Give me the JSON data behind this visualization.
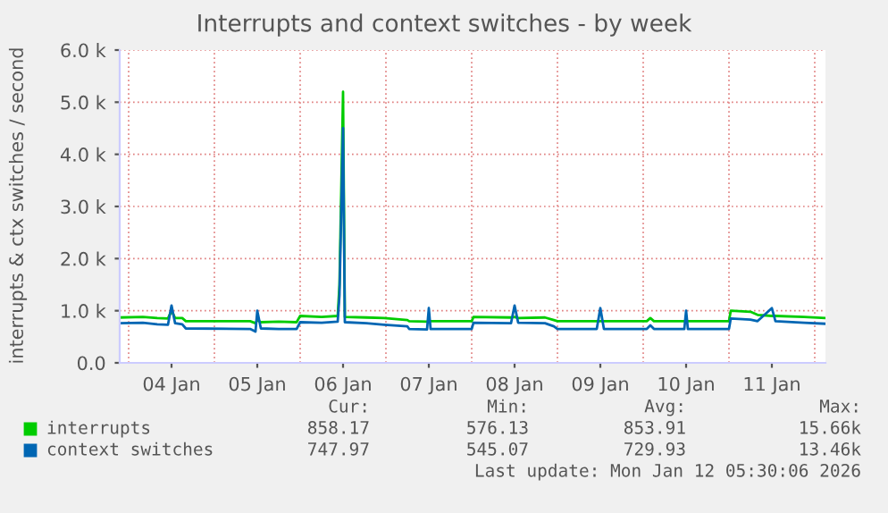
{
  "chart_data": {
    "type": "line",
    "title": "Interrupts and context switches - by week",
    "ylabel": "interrupts & ctx switches / second",
    "x": [
      "2026-01-03T21:30",
      "2026-01-04T04:00",
      "2026-01-04T08:00",
      "2026-01-04T11:00",
      "2026-01-04T12:00",
      "2026-01-04T13:00",
      "2026-01-04T15:00",
      "2026-01-04T16:00",
      "2026-01-05T10:00",
      "2026-01-05T11:30",
      "2026-01-05T12:00",
      "2026-01-05T13:00",
      "2026-01-05T18:00",
      "2026-01-05T23:00",
      "2026-01-06T00:00",
      "2026-01-06T06:00",
      "2026-01-06T10:30",
      "2026-01-06T11:00",
      "2026-01-06T12:00",
      "2026-01-06T12:30",
      "2026-01-06T18:30",
      "2026-01-06T23:30",
      "2026-01-07T06:00",
      "2026-01-07T06:30",
      "2026-01-07T11:30",
      "2026-01-07T12:00",
      "2026-01-07T12:30",
      "2026-01-08T00:00",
      "2026-01-08T00:30",
      "2026-01-08T11:00",
      "2026-01-08T12:00",
      "2026-01-08T13:00",
      "2026-01-08T20:30",
      "2026-01-08T23:00",
      "2026-01-09T00:00",
      "2026-01-09T11:00",
      "2026-01-09T12:00",
      "2026-01-09T13:00",
      "2026-01-10T01:00",
      "2026-01-10T02:00",
      "2026-01-10T03:00",
      "2026-01-10T11:30",
      "2026-01-10T12:00",
      "2026-01-10T12:30",
      "2026-01-11T00:00",
      "2026-01-11T00:30",
      "2026-01-11T06:00",
      "2026-01-11T08:00",
      "2026-01-11T12:00",
      "2026-01-11T13:00",
      "2026-01-11T21:00",
      "2026-01-12T03:00"
    ],
    "series": [
      {
        "name": "interrupts",
        "color": "#00cc00",
        "values": [
          870,
          880,
          860,
          850,
          1000,
          860,
          860,
          800,
          800,
          760,
          820,
          780,
          790,
          780,
          900,
          880,
          900,
          1500,
          5200,
          880,
          870,
          860,
          820,
          800,
          790,
          800,
          800,
          800,
          880,
          870,
          880,
          860,
          870,
          820,
          800,
          800,
          800,
          800,
          800,
          860,
          800,
          800,
          800,
          800,
          800,
          1000,
          980,
          920,
          900,
          900,
          880,
          860
        ]
      },
      {
        "name": "context switches",
        "color": "#0066b3",
        "values": [
          760,
          770,
          740,
          730,
          1100,
          760,
          740,
          660,
          650,
          600,
          1000,
          660,
          650,
          650,
          780,
          770,
          790,
          1300,
          4500,
          780,
          760,
          730,
          700,
          650,
          640,
          1050,
          650,
          650,
          770,
          760,
          1100,
          770,
          760,
          700,
          650,
          650,
          1050,
          650,
          650,
          720,
          650,
          650,
          1000,
          650,
          650,
          850,
          830,
          800,
          1050,
          800,
          770,
          750
        ]
      }
    ],
    "xlim": [
      "2026-01-03T21:30",
      "2026-01-12T03:00"
    ],
    "xticks": [
      {
        "value": "2026-01-04T12:00",
        "label": "04 Jan"
      },
      {
        "value": "2026-01-05T12:00",
        "label": "05 Jan"
      },
      {
        "value": "2026-01-06T12:00",
        "label": "06 Jan"
      },
      {
        "value": "2026-01-07T12:00",
        "label": "07 Jan"
      },
      {
        "value": "2026-01-08T12:00",
        "label": "08 Jan"
      },
      {
        "value": "2026-01-09T12:00",
        "label": "09 Jan"
      },
      {
        "value": "2026-01-10T12:00",
        "label": "10 Jan"
      },
      {
        "value": "2026-01-11T12:00",
        "label": "11 Jan"
      }
    ],
    "ylim": [
      0,
      6000
    ],
    "yticks": [
      {
        "value": 0,
        "label": "0.0"
      },
      {
        "value": 1000,
        "label": "1.0 k"
      },
      {
        "value": 2000,
        "label": "2.0 k"
      },
      {
        "value": 3000,
        "label": "3.0 k"
      },
      {
        "value": 4000,
        "label": "4.0 k"
      },
      {
        "value": 5000,
        "label": "5.0 k"
      },
      {
        "value": 6000,
        "label": "6.0 k"
      }
    ],
    "grid": true,
    "legend": "bottom",
    "marker": "none",
    "line_style": "solid",
    "annotations": [
      "Cur:",
      "Min:",
      "Avg:",
      "Max:",
      "858.17",
      "576.13",
      "853.91",
      "15.66k",
      "747.97",
      "545.07",
      "729.93",
      "13.46k",
      "Last update: Mon Jan 12 05:30:06 2026"
    ]
  }
}
